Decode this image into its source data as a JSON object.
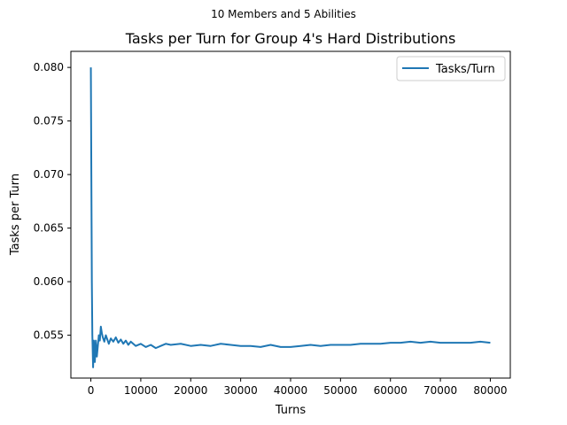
{
  "chart_data": {
    "type": "line",
    "suptitle": "10 Members and 5 Abilities",
    "title": "Tasks per Turn for Group 4's Hard Distributions",
    "xlabel": "Turns",
    "ylabel": "Tasks per Turn",
    "xlim": [
      -4000,
      84000
    ],
    "ylim": [
      0.051,
      0.0815
    ],
    "x_ticks": [
      0,
      10000,
      20000,
      30000,
      40000,
      50000,
      60000,
      70000,
      80000
    ],
    "x_tick_labels": [
      "0",
      "10000",
      "20000",
      "30000",
      "40000",
      "50000",
      "60000",
      "70000",
      "80000"
    ],
    "y_ticks": [
      0.055,
      0.06,
      0.065,
      0.07,
      0.075,
      0.08
    ],
    "y_tick_labels": [
      "0.055",
      "0.060",
      "0.065",
      "0.070",
      "0.075",
      "0.080"
    ],
    "legend": {
      "position": "top-right",
      "entries": [
        "Tasks/Turn"
      ]
    },
    "grid": false,
    "series": [
      {
        "name": "Tasks/Turn",
        "color": "#1f77b4",
        "x": [
          0,
          100,
          200,
          300,
          450,
          600,
          800,
          1000,
          1200,
          1400,
          1600,
          1800,
          2000,
          2200,
          2400,
          2700,
          3000,
          3300,
          3600,
          4000,
          4500,
          5000,
          5500,
          6000,
          6500,
          7000,
          7500,
          8000,
          9000,
          10000,
          11000,
          12000,
          13000,
          14000,
          15000,
          16000,
          18000,
          20000,
          22000,
          24000,
          26000,
          28000,
          30000,
          32000,
          34000,
          36000,
          38000,
          40000,
          42000,
          44000,
          46000,
          48000,
          50000,
          52000,
          54000,
          56000,
          58000,
          60000,
          62000,
          64000,
          66000,
          68000,
          70000,
          72000,
          74000,
          76000,
          78000,
          80000
        ],
        "values": [
          0.08,
          0.07,
          0.06,
          0.055,
          0.052,
          0.0545,
          0.0525,
          0.0545,
          0.053,
          0.054,
          0.055,
          0.0545,
          0.0558,
          0.0552,
          0.0548,
          0.0544,
          0.055,
          0.0546,
          0.0542,
          0.0547,
          0.0544,
          0.0548,
          0.0543,
          0.0546,
          0.0542,
          0.0545,
          0.0541,
          0.0544,
          0.054,
          0.0542,
          0.0539,
          0.0541,
          0.0538,
          0.054,
          0.0542,
          0.0541,
          0.0542,
          0.054,
          0.0541,
          0.054,
          0.0542,
          0.0541,
          0.054,
          0.054,
          0.0539,
          0.0541,
          0.0539,
          0.0539,
          0.054,
          0.0541,
          0.054,
          0.0541,
          0.0541,
          0.0541,
          0.0542,
          0.0542,
          0.0542,
          0.0543,
          0.0543,
          0.0544,
          0.0543,
          0.0544,
          0.0543,
          0.0543,
          0.0543,
          0.0543,
          0.0544,
          0.0543
        ]
      }
    ]
  }
}
